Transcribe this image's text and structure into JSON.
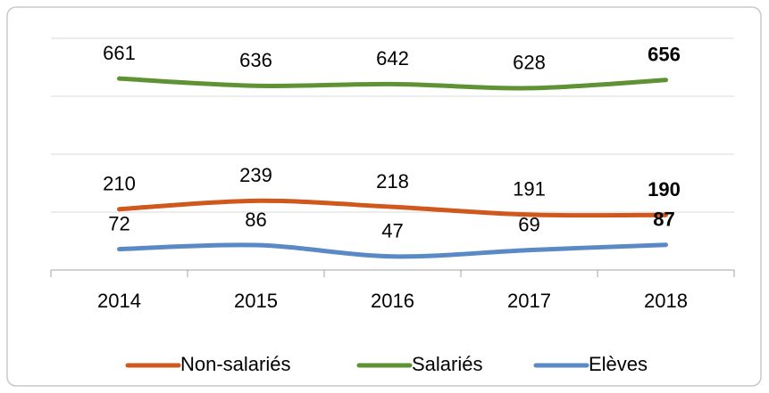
{
  "chart_data": {
    "type": "line",
    "categories": [
      "2014",
      "2015",
      "2016",
      "2017",
      "2018"
    ],
    "series": [
      {
        "name": "Non-salariés",
        "color": "#d0581c",
        "values": [
          210,
          239,
          218,
          191,
          190
        ]
      },
      {
        "name": "Salariés",
        "color": "#5e9234",
        "values": [
          661,
          636,
          642,
          628,
          656
        ]
      },
      {
        "name": "Elèves",
        "color": "#5a8ac6",
        "values": [
          72,
          86,
          47,
          69,
          87
        ]
      }
    ],
    "ylim": [
      0,
      800
    ],
    "yticks": [
      0,
      200,
      400,
      600,
      800
    ],
    "grid": true,
    "data_labels": true,
    "bold_last_label": true,
    "legend": "bottom"
  }
}
